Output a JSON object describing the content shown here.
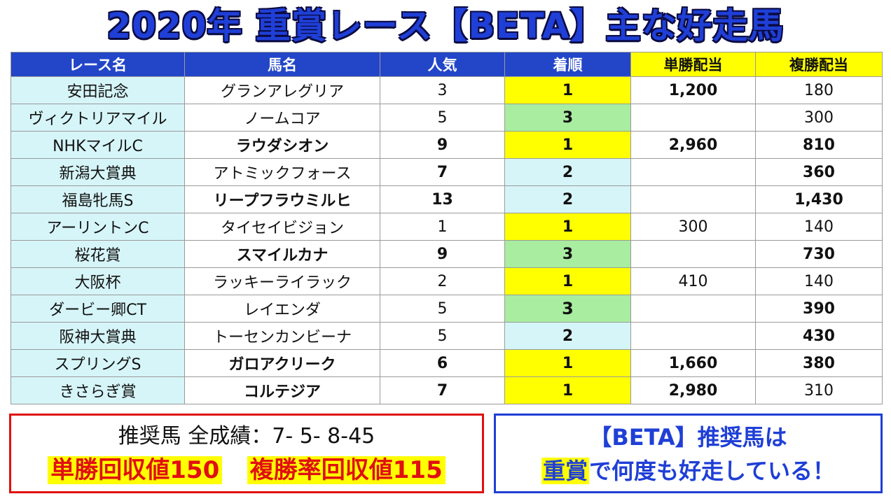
{
  "title": "2020年 重賞レース【BETA】主な好走馬",
  "headers": [
    "レース名",
    "馬名",
    "人気",
    "着順",
    "単勝配当",
    "複勝配当"
  ],
  "rows": [
    {
      "race": "安田記念",
      "horse": "グランアレグリア",
      "pop": "3",
      "rank": "1",
      "win": "1,200",
      "place": "180"
    },
    {
      "race": "ヴィクトリアマイル",
      "horse": "ノームコア",
      "pop": "5",
      "rank": "3",
      "win": "",
      "place": "300"
    },
    {
      "race": "NHKマイルC",
      "horse": "ラウダシオン",
      "pop": "9",
      "rank": "1",
      "win": "2,960",
      "place": "810"
    },
    {
      "race": "新潟大賞典",
      "horse": "アトミックフォース",
      "pop": "7",
      "rank": "2",
      "win": "",
      "place": "360"
    },
    {
      "race": "福島牝馬S",
      "horse": "リープフラウミルヒ",
      "pop": "13",
      "rank": "2",
      "win": "",
      "place": "1,430"
    },
    {
      "race": "アーリントンC",
      "horse": "タイセイビジョン",
      "pop": "1",
      "rank": "1",
      "win": "300",
      "place": "140"
    },
    {
      "race": "桜花賞",
      "horse": "スマイルカナ",
      "pop": "9",
      "rank": "3",
      "win": "",
      "place": "730"
    },
    {
      "race": "大阪杯",
      "horse": "ラッキーライラック",
      "pop": "2",
      "rank": "1",
      "win": "410",
      "place": "140"
    },
    {
      "race": "ダービー卿CT",
      "horse": "レイエンダ",
      "pop": "5",
      "rank": "3",
      "win": "",
      "place": "390"
    },
    {
      "race": "阪神大賞典",
      "horse": "トーセンカンビーナ",
      "pop": "5",
      "rank": "2",
      "win": "",
      "place": "430"
    },
    {
      "race": "スプリングS",
      "horse": "ガロアクリーク",
      "pop": "6",
      "rank": "1",
      "win": "1,660",
      "place": "380"
    },
    {
      "race": "きさらぎ賞",
      "horse": "コルテジア",
      "pop": "7",
      "rank": "1",
      "win": "2,980",
      "place": "310"
    }
  ],
  "summary": {
    "record": "推奨馬 全成績：7- 5- 8-45",
    "win_return": "単勝回収値150",
    "place_return": "複勝率回収値115"
  },
  "message": {
    "line1": "【BETA】推奨馬は",
    "line2_highlight": "重賞",
    "line2_rest": "で何度も好走している！"
  }
}
